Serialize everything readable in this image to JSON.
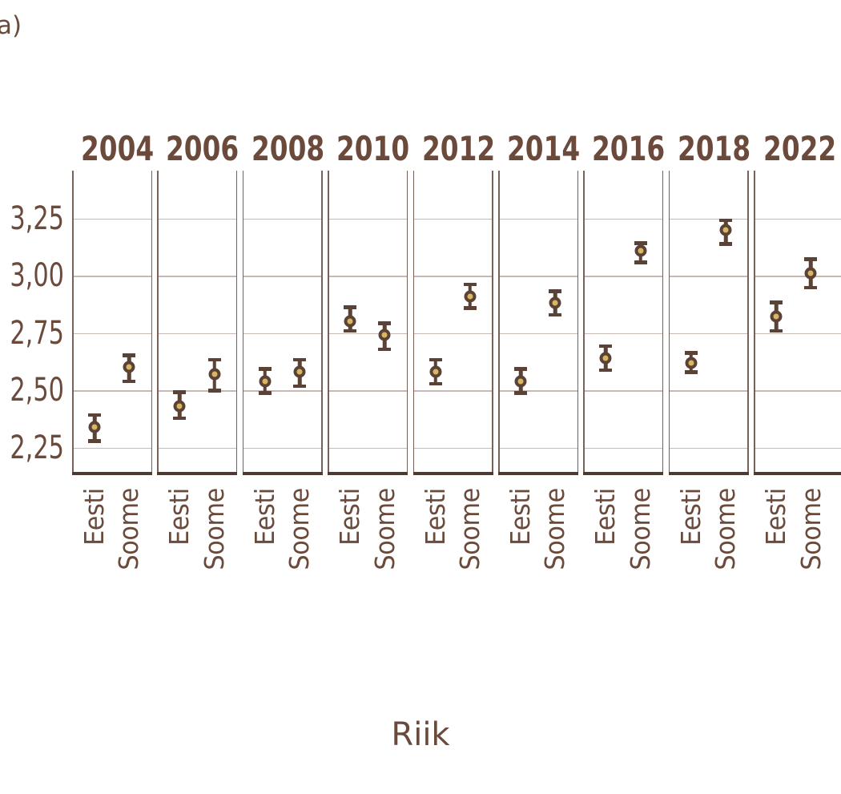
{
  "annotation": "a)",
  "chart_data": {
    "type": "pointrange",
    "title": "",
    "xlabel": "Riik",
    "ylabel": "",
    "grid": "horizontal",
    "legend": "none",
    "facet_row_label_position": "top",
    "categories": [
      "Eesti",
      "Soome"
    ],
    "ylim": [
      2.14,
      3.46
    ],
    "yticks": [
      {
        "value": 3.25,
        "label": "3,25"
      },
      {
        "value": 3.0,
        "label": "3,00"
      },
      {
        "value": 2.75,
        "label": "2,75"
      },
      {
        "value": 2.5,
        "label": "2,50"
      },
      {
        "value": 2.25,
        "label": "2,25"
      }
    ],
    "facets": [
      {
        "year": "2004",
        "points": [
          {
            "category": "Eesti",
            "value": 2.34,
            "ci_low": 2.27,
            "ci_high": 2.4
          },
          {
            "category": "Soome",
            "value": 2.6,
            "ci_low": 2.53,
            "ci_high": 2.66
          }
        ]
      },
      {
        "year": "2006",
        "points": [
          {
            "category": "Eesti",
            "value": 2.43,
            "ci_low": 2.37,
            "ci_high": 2.5
          },
          {
            "category": "Soome",
            "value": 2.57,
            "ci_low": 2.49,
            "ci_high": 2.64
          }
        ]
      },
      {
        "year": "2008",
        "points": [
          {
            "category": "Eesti",
            "value": 2.54,
            "ci_low": 2.48,
            "ci_high": 2.6
          },
          {
            "category": "Soome",
            "value": 2.58,
            "ci_low": 2.51,
            "ci_high": 2.64
          }
        ]
      },
      {
        "year": "2010",
        "points": [
          {
            "category": "Eesti",
            "value": 2.8,
            "ci_low": 2.75,
            "ci_high": 2.87
          },
          {
            "category": "Soome",
            "value": 2.74,
            "ci_low": 2.67,
            "ci_high": 2.8
          }
        ]
      },
      {
        "year": "2012",
        "points": [
          {
            "category": "Eesti",
            "value": 2.58,
            "ci_low": 2.52,
            "ci_high": 2.64
          },
          {
            "category": "Soome",
            "value": 2.91,
            "ci_low": 2.85,
            "ci_high": 2.97
          }
        ]
      },
      {
        "year": "2014",
        "points": [
          {
            "category": "Eesti",
            "value": 2.54,
            "ci_low": 2.48,
            "ci_high": 2.6
          },
          {
            "category": "Soome",
            "value": 2.88,
            "ci_low": 2.82,
            "ci_high": 2.94
          }
        ]
      },
      {
        "year": "2016",
        "points": [
          {
            "category": "Eesti",
            "value": 2.64,
            "ci_low": 2.58,
            "ci_high": 2.7
          },
          {
            "category": "Soome",
            "value": 3.11,
            "ci_low": 3.05,
            "ci_high": 3.15
          }
        ]
      },
      {
        "year": "2018",
        "points": [
          {
            "category": "Eesti",
            "value": 2.62,
            "ci_low": 2.57,
            "ci_high": 2.67
          },
          {
            "category": "Soome",
            "value": 3.2,
            "ci_low": 3.13,
            "ci_high": 3.25
          }
        ]
      },
      {
        "year": "2022",
        "points": [
          {
            "category": "Eesti",
            "value": 2.82,
            "ci_low": 2.75,
            "ci_high": 2.89
          },
          {
            "category": "Soome",
            "value": 3.01,
            "ci_low": 2.94,
            "ci_high": 3.08
          }
        ]
      }
    ],
    "colors": {
      "point_fill": "#d9b660",
      "point_ring": "#5b4237",
      "errorbar": "#5b4237",
      "gridline": "#c9b7b1",
      "panel_border": "#776257",
      "axis_line": "#4e3931",
      "text": "#6b4a3c"
    }
  }
}
